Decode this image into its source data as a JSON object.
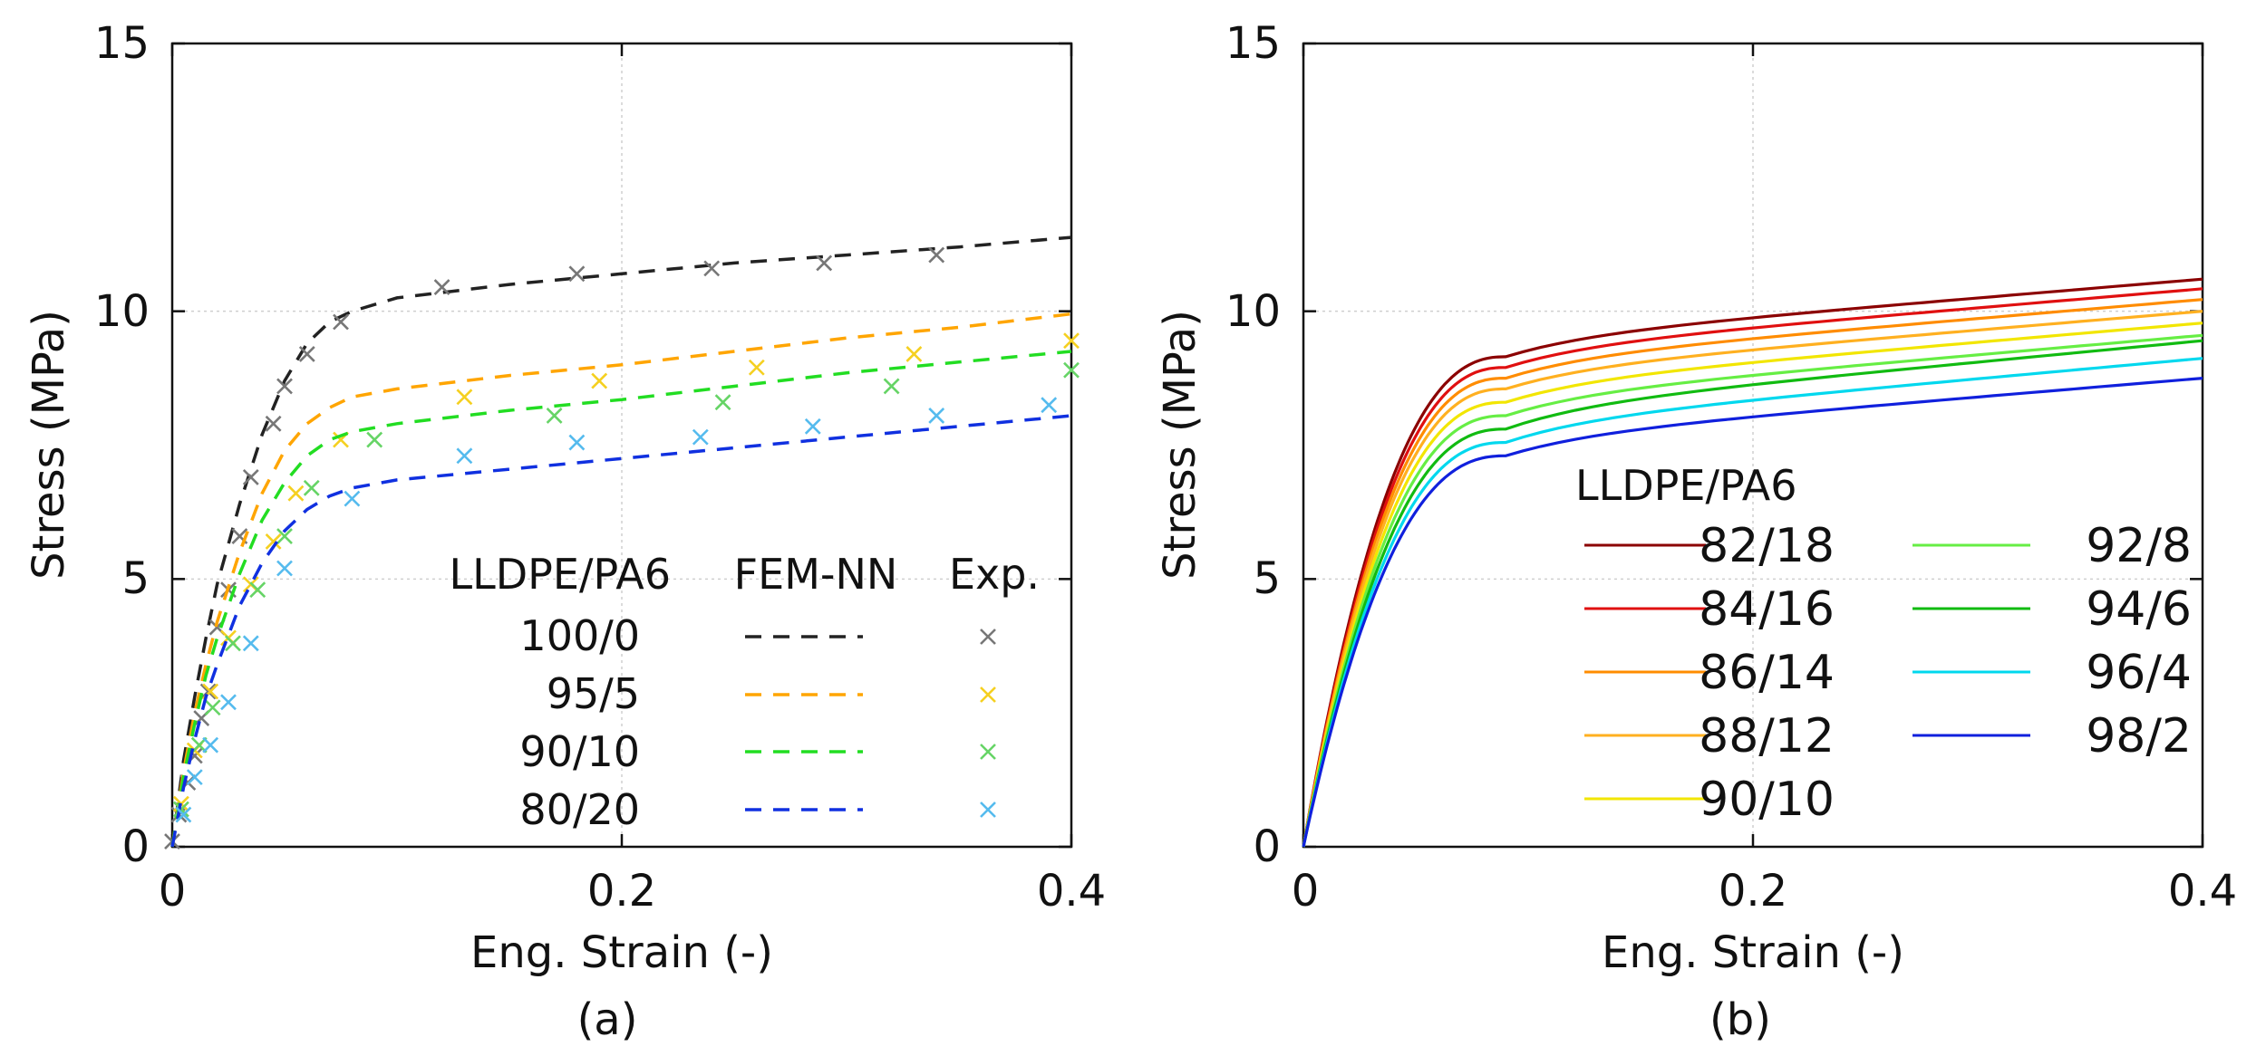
{
  "chart_data": [
    {
      "panel": "a",
      "type": "line",
      "panel_label": "(a)",
      "xlabel": "Eng. Strain (-)",
      "ylabel": "Stress (MPa)",
      "xlim": [
        0,
        0.4
      ],
      "ylim": [
        0,
        15
      ],
      "x_tick_labels": [
        "0",
        "0.2",
        "0.4"
      ],
      "y_tick_labels": [
        "0",
        "5",
        "10",
        "15"
      ],
      "grid": true,
      "legend": {
        "title": "LLDPE/PA6",
        "col_model": "FEM-NN",
        "col_exp": "Exp.",
        "position": "bottom-right"
      },
      "series": [
        {
          "name": "100/0",
          "color": "#222222",
          "exp_color": "#777777",
          "model": [
            [
              0,
              0
            ],
            [
              0.005,
              1.6
            ],
            [
              0.01,
              2.8
            ],
            [
              0.015,
              3.9
            ],
            [
              0.02,
              4.9
            ],
            [
              0.03,
              6.4
            ],
            [
              0.04,
              7.7
            ],
            [
              0.05,
              8.7
            ],
            [
              0.06,
              9.4
            ],
            [
              0.07,
              9.8
            ],
            [
              0.08,
              10.0
            ],
            [
              0.1,
              10.25
            ],
            [
              0.15,
              10.5
            ],
            [
              0.2,
              10.7
            ],
            [
              0.25,
              10.9
            ],
            [
              0.3,
              11.05
            ],
            [
              0.35,
              11.2
            ],
            [
              0.4,
              11.38
            ]
          ],
          "exp": [
            [
              0,
              0.1
            ],
            [
              0.003,
              0.6
            ],
            [
              0.007,
              1.2
            ],
            [
              0.01,
              1.7
            ],
            [
              0.013,
              2.4
            ],
            [
              0.016,
              2.9
            ],
            [
              0.02,
              4.1
            ],
            [
              0.025,
              4.8
            ],
            [
              0.03,
              5.8
            ],
            [
              0.035,
              6.9
            ],
            [
              0.045,
              7.9
            ],
            [
              0.05,
              8.6
            ],
            [
              0.06,
              9.2
            ],
            [
              0.075,
              9.8
            ],
            [
              0.12,
              10.45
            ],
            [
              0.18,
              10.7
            ],
            [
              0.24,
              10.8
            ],
            [
              0.29,
              10.9
            ],
            [
              0.34,
              11.05
            ]
          ]
        },
        {
          "name": "95/5",
          "color": "#ffa500",
          "exp_color": "#f5d020",
          "model": [
            [
              0,
              0
            ],
            [
              0.005,
              1.4
            ],
            [
              0.01,
              2.5
            ],
            [
              0.015,
              3.4
            ],
            [
              0.02,
              4.2
            ],
            [
              0.03,
              5.5
            ],
            [
              0.04,
              6.6
            ],
            [
              0.05,
              7.4
            ],
            [
              0.06,
              7.9
            ],
            [
              0.07,
              8.2
            ],
            [
              0.08,
              8.4
            ],
            [
              0.1,
              8.55
            ],
            [
              0.15,
              8.8
            ],
            [
              0.2,
              9.0
            ],
            [
              0.25,
              9.25
            ],
            [
              0.3,
              9.5
            ],
            [
              0.35,
              9.7
            ],
            [
              0.4,
              9.95
            ]
          ],
          "exp": [
            [
              0.004,
              0.8
            ],
            [
              0.01,
              1.8
            ],
            [
              0.017,
              2.9
            ],
            [
              0.025,
              3.9
            ],
            [
              0.035,
              4.9
            ],
            [
              0.045,
              5.7
            ],
            [
              0.055,
              6.6
            ],
            [
              0.075,
              7.6
            ],
            [
              0.13,
              8.4
            ],
            [
              0.19,
              8.7
            ],
            [
              0.26,
              8.95
            ],
            [
              0.33,
              9.2
            ],
            [
              0.4,
              9.45
            ]
          ]
        },
        {
          "name": "90/10",
          "color": "#22dd22",
          "exp_color": "#66d466",
          "model": [
            [
              0,
              0
            ],
            [
              0.005,
              1.3
            ],
            [
              0.01,
              2.3
            ],
            [
              0.015,
              3.2
            ],
            [
              0.02,
              3.9
            ],
            [
              0.03,
              5.1
            ],
            [
              0.04,
              6.1
            ],
            [
              0.05,
              6.8
            ],
            [
              0.06,
              7.3
            ],
            [
              0.07,
              7.6
            ],
            [
              0.08,
              7.75
            ],
            [
              0.1,
              7.9
            ],
            [
              0.15,
              8.15
            ],
            [
              0.2,
              8.35
            ],
            [
              0.25,
              8.6
            ],
            [
              0.3,
              8.85
            ],
            [
              0.35,
              9.05
            ],
            [
              0.4,
              9.25
            ]
          ],
          "exp": [
            [
              0.004,
              0.7
            ],
            [
              0.012,
              1.9
            ],
            [
              0.018,
              2.6
            ],
            [
              0.027,
              3.8
            ],
            [
              0.038,
              4.8
            ],
            [
              0.05,
              5.8
            ],
            [
              0.062,
              6.7
            ],
            [
              0.09,
              7.6
            ],
            [
              0.17,
              8.05
            ],
            [
              0.245,
              8.3
            ],
            [
              0.32,
              8.6
            ],
            [
              0.4,
              8.9
            ]
          ]
        },
        {
          "name": "80/20",
          "color": "#1030e0",
          "exp_color": "#55bbee",
          "model": [
            [
              0,
              0
            ],
            [
              0.005,
              1.1
            ],
            [
              0.01,
              2.0
            ],
            [
              0.015,
              2.8
            ],
            [
              0.02,
              3.4
            ],
            [
              0.03,
              4.5
            ],
            [
              0.04,
              5.3
            ],
            [
              0.05,
              5.9
            ],
            [
              0.06,
              6.3
            ],
            [
              0.07,
              6.55
            ],
            [
              0.08,
              6.7
            ],
            [
              0.1,
              6.85
            ],
            [
              0.15,
              7.05
            ],
            [
              0.2,
              7.25
            ],
            [
              0.25,
              7.45
            ],
            [
              0.3,
              7.65
            ],
            [
              0.35,
              7.85
            ],
            [
              0.4,
              8.05
            ]
          ],
          "exp": [
            [
              0.005,
              0.6
            ],
            [
              0.01,
              1.3
            ],
            [
              0.017,
              1.9
            ],
            [
              0.025,
              2.7
            ],
            [
              0.035,
              3.8
            ],
            [
              0.05,
              5.2
            ],
            [
              0.08,
              6.5
            ],
            [
              0.13,
              7.3
            ],
            [
              0.18,
              7.55
            ],
            [
              0.235,
              7.65
            ],
            [
              0.285,
              7.85
            ],
            [
              0.34,
              8.05
            ],
            [
              0.39,
              8.25
            ]
          ]
        }
      ]
    },
    {
      "panel": "b",
      "type": "line",
      "panel_label": "(b)",
      "xlabel": "Eng. Strain (-)",
      "ylabel": "Stress (MPa)",
      "xlim": [
        0,
        0.4
      ],
      "ylim": [
        0,
        15
      ],
      "x_tick_labels": [
        "0",
        "0.2",
        "0.4"
      ],
      "y_tick_labels": [
        "0",
        "5",
        "10",
        "15"
      ],
      "grid": true,
      "legend": {
        "title": "LLDPE/PA6",
        "position": "center-right"
      },
      "curve_shape": {
        "elastic_fraction_of_yield": 0.82,
        "knee_strain": 0.025
      },
      "series": [
        {
          "name": "82/18",
          "color": "#8b0000",
          "yield_strain": 0.09,
          "yield_stress": 9.15,
          "end_stress": 10.6
        },
        {
          "name": "84/16",
          "color": "#e01010",
          "yield_strain": 0.09,
          "yield_stress": 8.95,
          "end_stress": 10.42
        },
        {
          "name": "86/14",
          "color": "#ff8c00",
          "yield_strain": 0.09,
          "yield_stress": 8.75,
          "end_stress": 10.22
        },
        {
          "name": "88/12",
          "color": "#ffb020",
          "yield_strain": 0.09,
          "yield_stress": 8.55,
          "end_stress": 10.0
        },
        {
          "name": "90/10",
          "color": "#f2e600",
          "yield_strain": 0.09,
          "yield_stress": 8.3,
          "end_stress": 9.78
        },
        {
          "name": "92/8",
          "color": "#66ee44",
          "yield_strain": 0.09,
          "yield_stress": 8.05,
          "end_stress": 9.55
        },
        {
          "name": "94/6",
          "color": "#11bb11",
          "yield_strain": 0.09,
          "yield_stress": 7.8,
          "end_stress": 9.45
        },
        {
          "name": "96/4",
          "color": "#00d8ee",
          "yield_strain": 0.09,
          "yield_stress": 7.55,
          "end_stress": 9.12
        },
        {
          "name": "98/2",
          "color": "#1020dd",
          "yield_strain": 0.09,
          "yield_stress": 7.3,
          "end_stress": 8.75
        }
      ]
    }
  ]
}
